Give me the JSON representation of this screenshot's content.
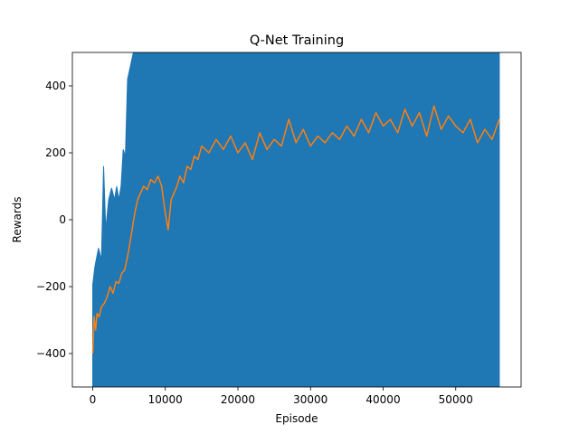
{
  "chart_data": {
    "type": "line",
    "title": "Q-Net Training",
    "xlabel": "Episode",
    "ylabel": "Rewards",
    "xlim": [
      -2800,
      59000
    ],
    "ylim": [
      -500,
      500
    ],
    "xticks": [
      0,
      10000,
      20000,
      30000,
      40000,
      50000
    ],
    "xtick_labels": [
      "0",
      "10000",
      "20000",
      "30000",
      "40000",
      "50000"
    ],
    "yticks": [
      -400,
      -200,
      0,
      200,
      400
    ],
    "ytick_labels": [
      "−400",
      "−200",
      "0",
      "200",
      "400"
    ],
    "grid": false,
    "legend": "none",
    "series": [
      {
        "color": "#1f77b4",
        "kind": "per-episode rewards (dense, oscillating between min and max)",
        "x": [
          0,
          300,
          800,
          1200,
          1500,
          1800,
          2200,
          2600,
          3000,
          3300,
          3600,
          3900,
          4200,
          4500,
          4800,
          5200,
          5600,
          56000
        ],
        "y_max": [
          -195,
          -140,
          -85,
          -120,
          160,
          -30,
          60,
          95,
          60,
          100,
          60,
          100,
          210,
          190,
          420,
          460,
          500,
          500
        ],
        "y_min": [
          -500,
          -500,
          -500,
          -500,
          -500,
          -500,
          -500,
          -500,
          -500,
          -500,
          -500,
          -500,
          -500,
          -500,
          -500,
          -500,
          -500,
          -500
        ]
      },
      {
        "color": "#ff7f0e",
        "kind": "moving average",
        "x": [
          0,
          200,
          400,
          600,
          900,
          1200,
          1600,
          2000,
          2400,
          2800,
          3200,
          3600,
          4000,
          4400,
          4800,
          5200,
          5500,
          5800,
          6200,
          6600,
          7000,
          7500,
          8000,
          8500,
          9000,
          9500,
          10000,
          10400,
          10800,
          11200,
          11600,
          12000,
          12500,
          13000,
          13500,
          14000,
          14500,
          15000,
          16000,
          17000,
          18000,
          19000,
          20000,
          21000,
          22000,
          23000,
          24000,
          25000,
          26000,
          27000,
          28000,
          29000,
          30000,
          31000,
          32000,
          33000,
          34000,
          35000,
          36000,
          37000,
          38000,
          39000,
          40000,
          41000,
          42000,
          43000,
          44000,
          45000,
          46000,
          47000,
          48000,
          49000,
          50000,
          51000,
          52000,
          53000,
          54000,
          55000,
          56000
        ],
        "y": [
          -400,
          -290,
          -330,
          -280,
          -290,
          -260,
          -250,
          -230,
          -200,
          -220,
          -185,
          -190,
          -160,
          -150,
          -110,
          -60,
          -20,
          20,
          60,
          80,
          100,
          90,
          120,
          110,
          130,
          100,
          20,
          -30,
          60,
          80,
          100,
          130,
          110,
          160,
          150,
          190,
          180,
          220,
          200,
          240,
          210,
          250,
          200,
          230,
          180,
          260,
          210,
          240,
          220,
          300,
          230,
          270,
          220,
          250,
          230,
          260,
          240,
          280,
          250,
          300,
          260,
          320,
          280,
          300,
          260,
          330,
          280,
          320,
          250,
          340,
          270,
          310,
          280,
          260,
          300,
          230,
          270,
          240,
          300
        ]
      }
    ]
  }
}
